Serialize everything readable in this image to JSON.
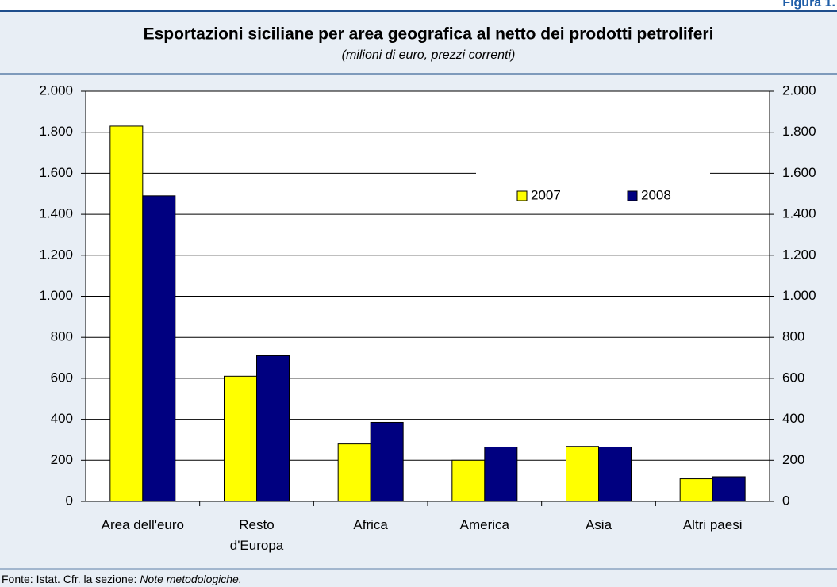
{
  "figure_label": "Figura 1.",
  "source": "Fonte: Istat. Cfr. la sezione:",
  "source_note": "Note metodologiche.",
  "chart_data": {
    "type": "bar",
    "title": "Esportazioni siciliane per area geografica al netto dei prodotti petroliferi",
    "subtitle": "(milioni di euro, prezzi correnti)",
    "categories": [
      "Area dell'euro",
      "Resto\nd'Europa",
      "Africa",
      "America",
      "Asia",
      "Altri paesi"
    ],
    "series": [
      {
        "name": "2007",
        "color": "#ffff00",
        "values": [
          1830,
          610,
          280,
          200,
          268,
          110
        ]
      },
      {
        "name": "2008",
        "color": "#000080",
        "values": [
          1490,
          710,
          385,
          265,
          265,
          120
        ]
      }
    ],
    "ylim": [
      0,
      2000
    ],
    "yticks": [
      0,
      200,
      400,
      600,
      800,
      {
        "value": 1000,
        "label": "1.000"
      },
      {
        "value": 1200,
        "label": "1.200"
      },
      {
        "value": 1400,
        "label": "1.400"
      },
      {
        "value": 1600,
        "label": "1.600"
      },
      {
        "value": 1800,
        "label": "1.800"
      },
      {
        "value": 2000,
        "label": "2.000"
      }
    ],
    "grid": true
  }
}
